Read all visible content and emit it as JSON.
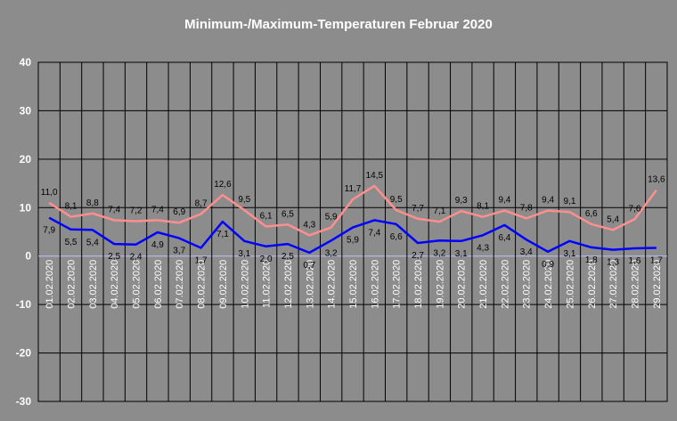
{
  "chart_data": {
    "type": "line",
    "title": "Minimum-/Maximum-Temperaturen Februar 2020",
    "xlabel": "",
    "ylabel": "",
    "ylim": [
      -30,
      40
    ],
    "yticks": [
      40,
      30,
      20,
      10,
      0,
      -10,
      -20,
      -30
    ],
    "grid": true,
    "categories": [
      "01.02.2020",
      "02.02.2020",
      "03.02.2020",
      "04.02.2020",
      "05.02.2020",
      "06.02.2020",
      "07.02.2020",
      "08.02.2020",
      "09.02.2020",
      "10.02.2020",
      "11.02.2020",
      "12.02.2020",
      "13.02.2020",
      "14.02.2020",
      "15.02.2020",
      "16.02.2020",
      "17.02.2020",
      "18.02.2020",
      "19.02.2020",
      "20.02.2020",
      "21.02.2020",
      "22.02.2020",
      "23.02.2020",
      "24.02.2020",
      "25.02.2020",
      "26.02.2020",
      "27.02.2020",
      "28.02.2020",
      "29.02.2020"
    ],
    "series": [
      {
        "color": "#ff8f8f",
        "values": [
          11.0,
          8.1,
          8.8,
          7.4,
          7.2,
          7.4,
          6.9,
          8.7,
          12.6,
          9.5,
          6.1,
          6.5,
          4.3,
          5.9,
          11.7,
          14.5,
          9.5,
          7.7,
          7.1,
          9.3,
          8.1,
          9.4,
          7.8,
          9.4,
          9.1,
          6.6,
          5.4,
          7.6,
          13.6
        ],
        "labels": [
          "11,0",
          "8,1",
          "8,8",
          "7,4",
          "7,2",
          "7,4",
          "6,9",
          "8,7",
          "12,6",
          "9,5",
          "6,1",
          "6,5",
          "4,3",
          "5,9",
          "11,7",
          "14,5",
          "9,5",
          "7,7",
          "7,1",
          "9,3",
          "8,1",
          "9,4",
          "7,8",
          "9,4",
          "9,1",
          "6,6",
          "5,4",
          "7,6",
          "13,6"
        ]
      },
      {
        "color": "#0000ff",
        "values": [
          7.9,
          5.5,
          5.4,
          2.5,
          2.4,
          4.9,
          3.7,
          1.7,
          7.1,
          3.1,
          2.0,
          2.5,
          0.7,
          3.2,
          5.9,
          7.4,
          6.6,
          2.7,
          3.2,
          3.1,
          4.3,
          6.4,
          3.4,
          0.9,
          3.1,
          1.8,
          1.3,
          1.6,
          1.7
        ],
        "labels": [
          "7,9",
          "5,5",
          "5,4",
          "2,5",
          "2,4",
          "4,9",
          "3,7",
          "1,7",
          "7,1",
          "3,1",
          "2,0",
          "2,5",
          "0,7",
          "3,2",
          "5,9",
          "7,4",
          "6,6",
          "2,7",
          "3,2",
          "3,1",
          "4,3",
          "6,4",
          "3,4",
          "0,9",
          "3,1",
          "1,8",
          "1,3",
          "1,6",
          "1,7"
        ]
      }
    ],
    "colors": {
      "background": "#8c8c8c",
      "plot_area": "#8c8c8c",
      "gridline": "#000000",
      "zero_line": "#c0c0ff"
    }
  }
}
